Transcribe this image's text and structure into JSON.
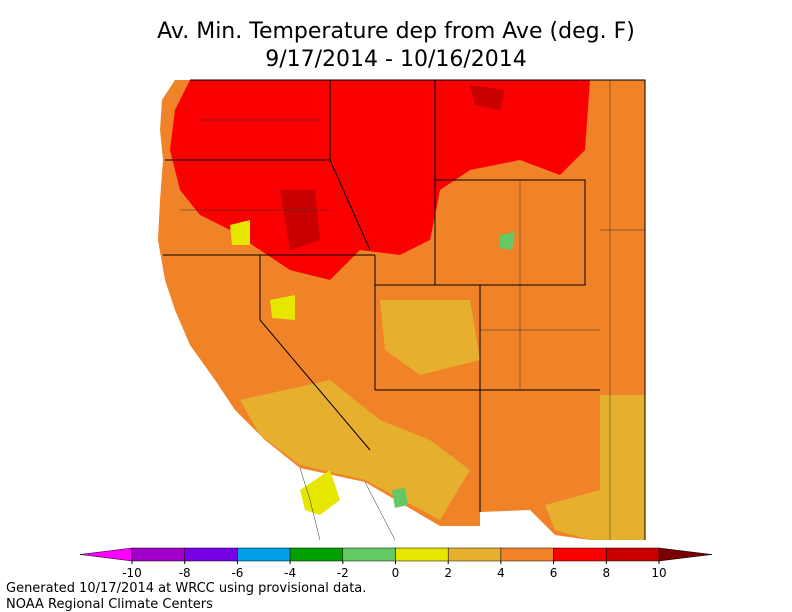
{
  "title": [
    "Av. Min. Temperature dep from Ave (deg. F)",
    "9/17/2014 - 10/16/2014"
  ],
  "colorbar": {
    "ticks": [
      -10,
      -8,
      -6,
      -4,
      -2,
      0,
      2,
      4,
      6,
      8,
      10
    ],
    "colors": [
      "#a000c8",
      "#7800e6",
      "#00a0e6",
      "#00a000",
      "#64c864",
      "#e6e600",
      "#e6af2d",
      "#f08228",
      "#fa0000",
      "#c80000"
    ],
    "under_color": "#ff00ff",
    "over_color": "#780000"
  },
  "footer": [
    "Generated 10/17/2014 at WRCC using provisional data.",
    "NOAA Regional Climate Centers"
  ]
}
